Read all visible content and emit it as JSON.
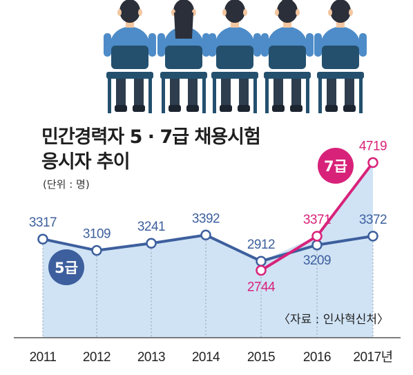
{
  "title_lines": [
    "민간경력자 5 · 7급 채용시험",
    "응시자 추이"
  ],
  "unit": "(단위 : 명)",
  "source": "〈자료 : 인사혁신처〉",
  "colors": {
    "grade5": "#3d5f9d",
    "grade7": "#d8227a",
    "area_fill": "#cbe0f4",
    "axis": "#555555",
    "shirt": "#4d8cc8",
    "chair": "#24506e",
    "hair": "#2b2f3a",
    "pants": "#2e3e4e"
  },
  "chart_data": {
    "type": "line",
    "categories": [
      "2011",
      "2012",
      "2013",
      "2014",
      "2015",
      "2016",
      "2017년"
    ],
    "series": [
      {
        "name": "5급",
        "values": [
          3317,
          3109,
          3241,
          3392,
          2912,
          3209,
          3372
        ]
      },
      {
        "name": "7급",
        "values": [
          null,
          null,
          null,
          null,
          2744,
          3371,
          4719
        ]
      }
    ],
    "title": "민간경력자 5 · 7급 채용시험 응시자 추이",
    "ylabel": "",
    "xlabel": "",
    "legend": "inline badges"
  },
  "illustration": {
    "people": [
      {
        "hair": "short"
      },
      {
        "hair": "long"
      },
      {
        "hair": "short"
      },
      {
        "hair": "bun"
      },
      {
        "hair": "short"
      }
    ]
  }
}
